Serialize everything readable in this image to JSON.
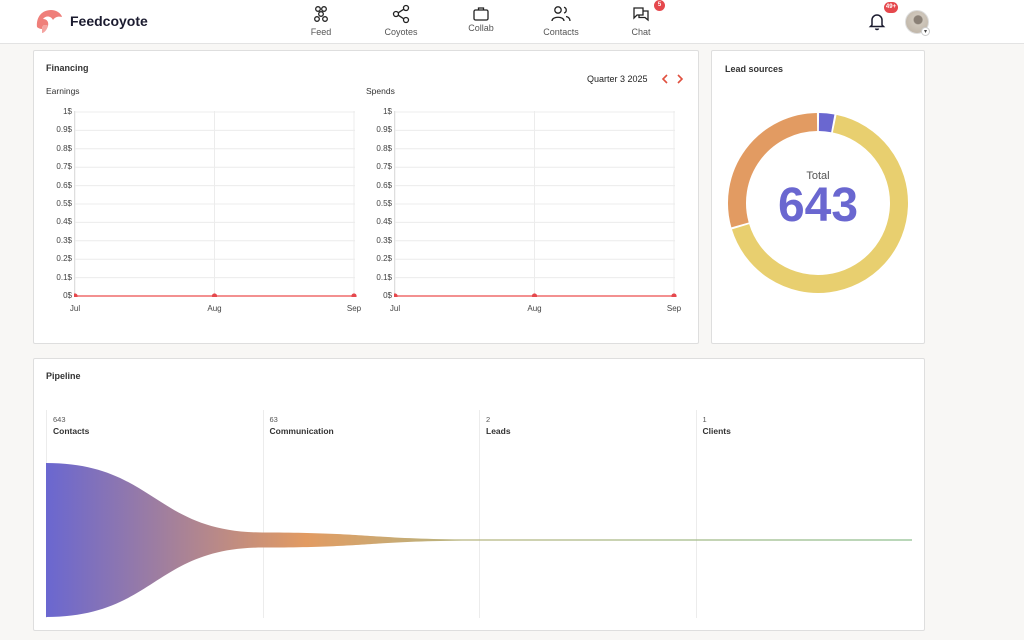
{
  "header": {
    "brand": "Feedcoyote",
    "nav": [
      {
        "label": "Feed",
        "icon": "feed-icon"
      },
      {
        "label": "Coyotes",
        "icon": "share-icon"
      },
      {
        "label": "Collab",
        "icon": "briefcase-icon"
      },
      {
        "label": "Contacts",
        "icon": "users-icon"
      },
      {
        "label": "Chat",
        "icon": "chat-icon",
        "badge": "5"
      }
    ],
    "notifications_badge": "49+"
  },
  "financing": {
    "title": "Financing",
    "period": "Quarter 3 2025"
  },
  "chart_data": [
    {
      "type": "line",
      "title": "Earnings",
      "categories": [
        "Jul",
        "Aug",
        "Sep"
      ],
      "values": [
        0,
        0,
        0
      ],
      "yticks": [
        "1$",
        "0.9$",
        "0.8$",
        "0.7$",
        "0.6$",
        "0.5$",
        "0.4$",
        "0.3$",
        "0.2$",
        "0.1$",
        "0$"
      ],
      "ylim": [
        0,
        1
      ],
      "grid": true,
      "color": "#ef6b6b"
    },
    {
      "type": "line",
      "title": "Spends",
      "categories": [
        "Jul",
        "Aug",
        "Sep"
      ],
      "values": [
        0,
        0,
        0
      ],
      "yticks": [
        "1$",
        "0.9$",
        "0.8$",
        "0.7$",
        "0.6$",
        "0.5$",
        "0.4$",
        "0.3$",
        "0.2$",
        "0.1$",
        "0$"
      ],
      "ylim": [
        0,
        1
      ],
      "grid": true,
      "color": "#ef6b6b"
    },
    {
      "type": "pie",
      "title": "Lead sources",
      "center_label": "Total",
      "center_value": "643",
      "slices": [
        {
          "value": 20,
          "color": "#6a67d0"
        },
        {
          "value": 433,
          "color": "#e8cf6f"
        },
        {
          "value": 190,
          "color": "#e29b62"
        }
      ]
    },
    {
      "type": "funnel",
      "title": "Pipeline",
      "stages": [
        {
          "count": "643",
          "name": "Contacts",
          "value": 643
        },
        {
          "count": "63",
          "name": "Communication",
          "value": 63
        },
        {
          "count": "2",
          "name": "Leads",
          "value": 2
        },
        {
          "count": "1",
          "name": "Clients",
          "value": 1
        }
      ],
      "colors": [
        "#6a67d0",
        "#e29b62",
        "#8fbf8f"
      ]
    }
  ]
}
